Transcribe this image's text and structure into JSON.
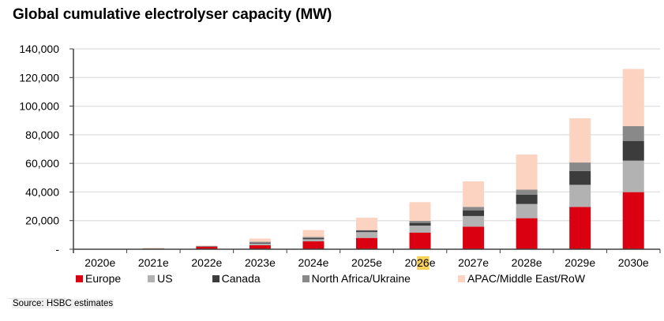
{
  "chart_data": {
    "type": "bar",
    "stacked": true,
    "title": "Global cumulative electrolyser capacity (MW)",
    "xlabel": "",
    "ylabel": "",
    "ylim": [
      0,
      140000
    ],
    "yticks": [
      0,
      20000,
      40000,
      60000,
      80000,
      100000,
      120000,
      140000
    ],
    "ytick_labels": [
      "-",
      "20,000",
      "40,000",
      "60,000",
      "80,000",
      "100,000",
      "120,000",
      "140,000"
    ],
    "grid": true,
    "legend_position": "bottom",
    "categories": [
      "2020e",
      "2021e",
      "2022e",
      "2023e",
      "2024e",
      "2025e",
      "2026e",
      "2027e",
      "2028e",
      "2029e",
      "2030e"
    ],
    "series": [
      {
        "name": "Europe",
        "color": "#db0011",
        "values": [
          100,
          300,
          1800,
          2800,
          5500,
          7900,
          11600,
          15800,
          21700,
          29600,
          39900
        ]
      },
      {
        "name": "US",
        "color": "#b2b2b2",
        "values": [
          50,
          100,
          300,
          1000,
          1500,
          4100,
          4900,
          7400,
          9900,
          15400,
          22000
        ]
      },
      {
        "name": "Canada",
        "color": "#3c3c3c",
        "values": [
          0,
          50,
          100,
          500,
          700,
          1000,
          1900,
          4000,
          6600,
          9600,
          13800
        ]
      },
      {
        "name": "North Africa/Ukraine",
        "color": "#898989",
        "values": [
          0,
          50,
          100,
          900,
          900,
          400,
          1400,
          2400,
          3500,
          6000,
          10300
        ]
      },
      {
        "name": "APAC/Middle East/RoW",
        "color": "#fcd3c1",
        "values": [
          150,
          500,
          300,
          2300,
          4800,
          8600,
          13100,
          17800,
          24500,
          30900,
          40000
        ]
      }
    ]
  },
  "highlight": {
    "category_index": 6,
    "text": "26"
  },
  "source": "Source: HSBC estimates"
}
